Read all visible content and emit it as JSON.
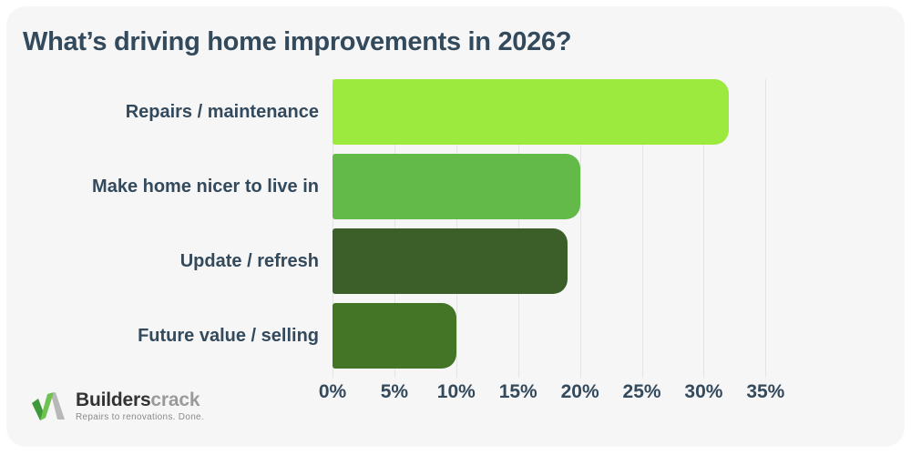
{
  "title": "What’s driving home improvements in 2026?",
  "chart_data": {
    "type": "bar",
    "orientation": "horizontal",
    "title": "What’s driving home improvements in 2026?",
    "categories": [
      "Repairs / maintenance",
      "Make home nicer to live in",
      "Update / refresh",
      "Future value / selling"
    ],
    "values": [
      32,
      20,
      19,
      10
    ],
    "unit": "%",
    "bar_colors": [
      "#9cea3e",
      "#63ba48",
      "#3c5f2a",
      "#447527"
    ],
    "x_ticks": [
      0,
      5,
      10,
      15,
      20,
      25,
      30,
      35
    ],
    "x_tick_labels": [
      "0%",
      "5%",
      "10%",
      "15%",
      "20%",
      "25%",
      "30%",
      "35%"
    ],
    "xlim": [
      0,
      36.3
    ],
    "xlabel": "",
    "ylabel": "",
    "grid": "vertical",
    "legend": false
  },
  "colors": {
    "page_bg": "#ffffff",
    "card_bg": "#f6f6f7",
    "text": "#33495c",
    "gridline": "#e4e4e7"
  },
  "logo": {
    "brand_bold": "Builders",
    "brand_light": "crack",
    "tagline": "Repairs to renovations. Done.",
    "icon_green_dark": "#3f9839",
    "icon_green_bright": "#6ec24d",
    "icon_gray": "#b8b8b8"
  }
}
